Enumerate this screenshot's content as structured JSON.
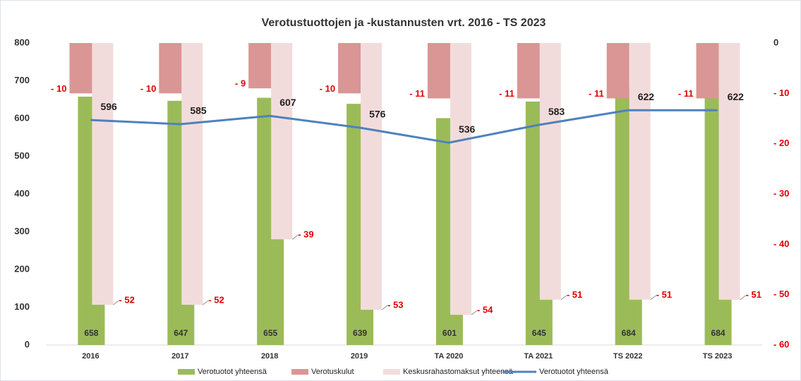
{
  "chart_data": {
    "type": "combo",
    "title": "Verotustuottojen ja  -kustannusten vrt. 2016 - TS 2023",
    "categories": [
      "2016",
      "2017",
      "2018",
      "2019",
      "TA 2020",
      "TA 2021",
      "TS 2022",
      "TS 2023"
    ],
    "series": [
      {
        "name": "Verotuotot yhteensä",
        "type": "bar",
        "color": "#9bbb59",
        "values": [
          658,
          647,
          655,
          639,
          601,
          645,
          684,
          684
        ]
      },
      {
        "name": "Verotuskulut",
        "type": "bar",
        "axis": "y2",
        "color": "#d99694",
        "values": [
          -10,
          -10,
          -9,
          -10,
          -11,
          -11,
          -11,
          -11
        ],
        "value_labels": [
          "- 10",
          "- 10",
          "- 9",
          "- 10",
          "- 11",
          "- 11",
          "- 11",
          "- 11"
        ]
      },
      {
        "name": "Keskusrahastomaksut yhteensä",
        "type": "bar",
        "axis": "y2",
        "color": "#f2dcdb",
        "values": [
          -52,
          -52,
          -39,
          -53,
          -54,
          -51,
          -51,
          -51
        ],
        "value_labels": [
          "- 52",
          "- 52",
          "- 39",
          "- 53",
          "- 54",
          "- 51",
          "- 51",
          "- 51"
        ]
      },
      {
        "name": "Verotuotot yhteensä",
        "type": "line",
        "color": "#4f81bd",
        "values": [
          596,
          585,
          607,
          576,
          536,
          583,
          622,
          622
        ]
      }
    ],
    "ylim": [
      0,
      800
    ],
    "yticks": [
      0,
      100,
      200,
      300,
      400,
      500,
      600,
      700,
      800
    ],
    "y2lim": [
      -60,
      0
    ],
    "y2_reversed": true,
    "y2ticks": [
      0,
      {
        "value": -10,
        "label": "- 10"
      },
      {
        "value": -20,
        "label": "- 20"
      },
      {
        "value": -30,
        "label": "- 30"
      },
      {
        "value": -40,
        "label": "- 40"
      },
      {
        "value": -50,
        "label": "- 50"
      },
      {
        "value": -60,
        "label": "- 60"
      }
    ],
    "legend": "bottom"
  }
}
